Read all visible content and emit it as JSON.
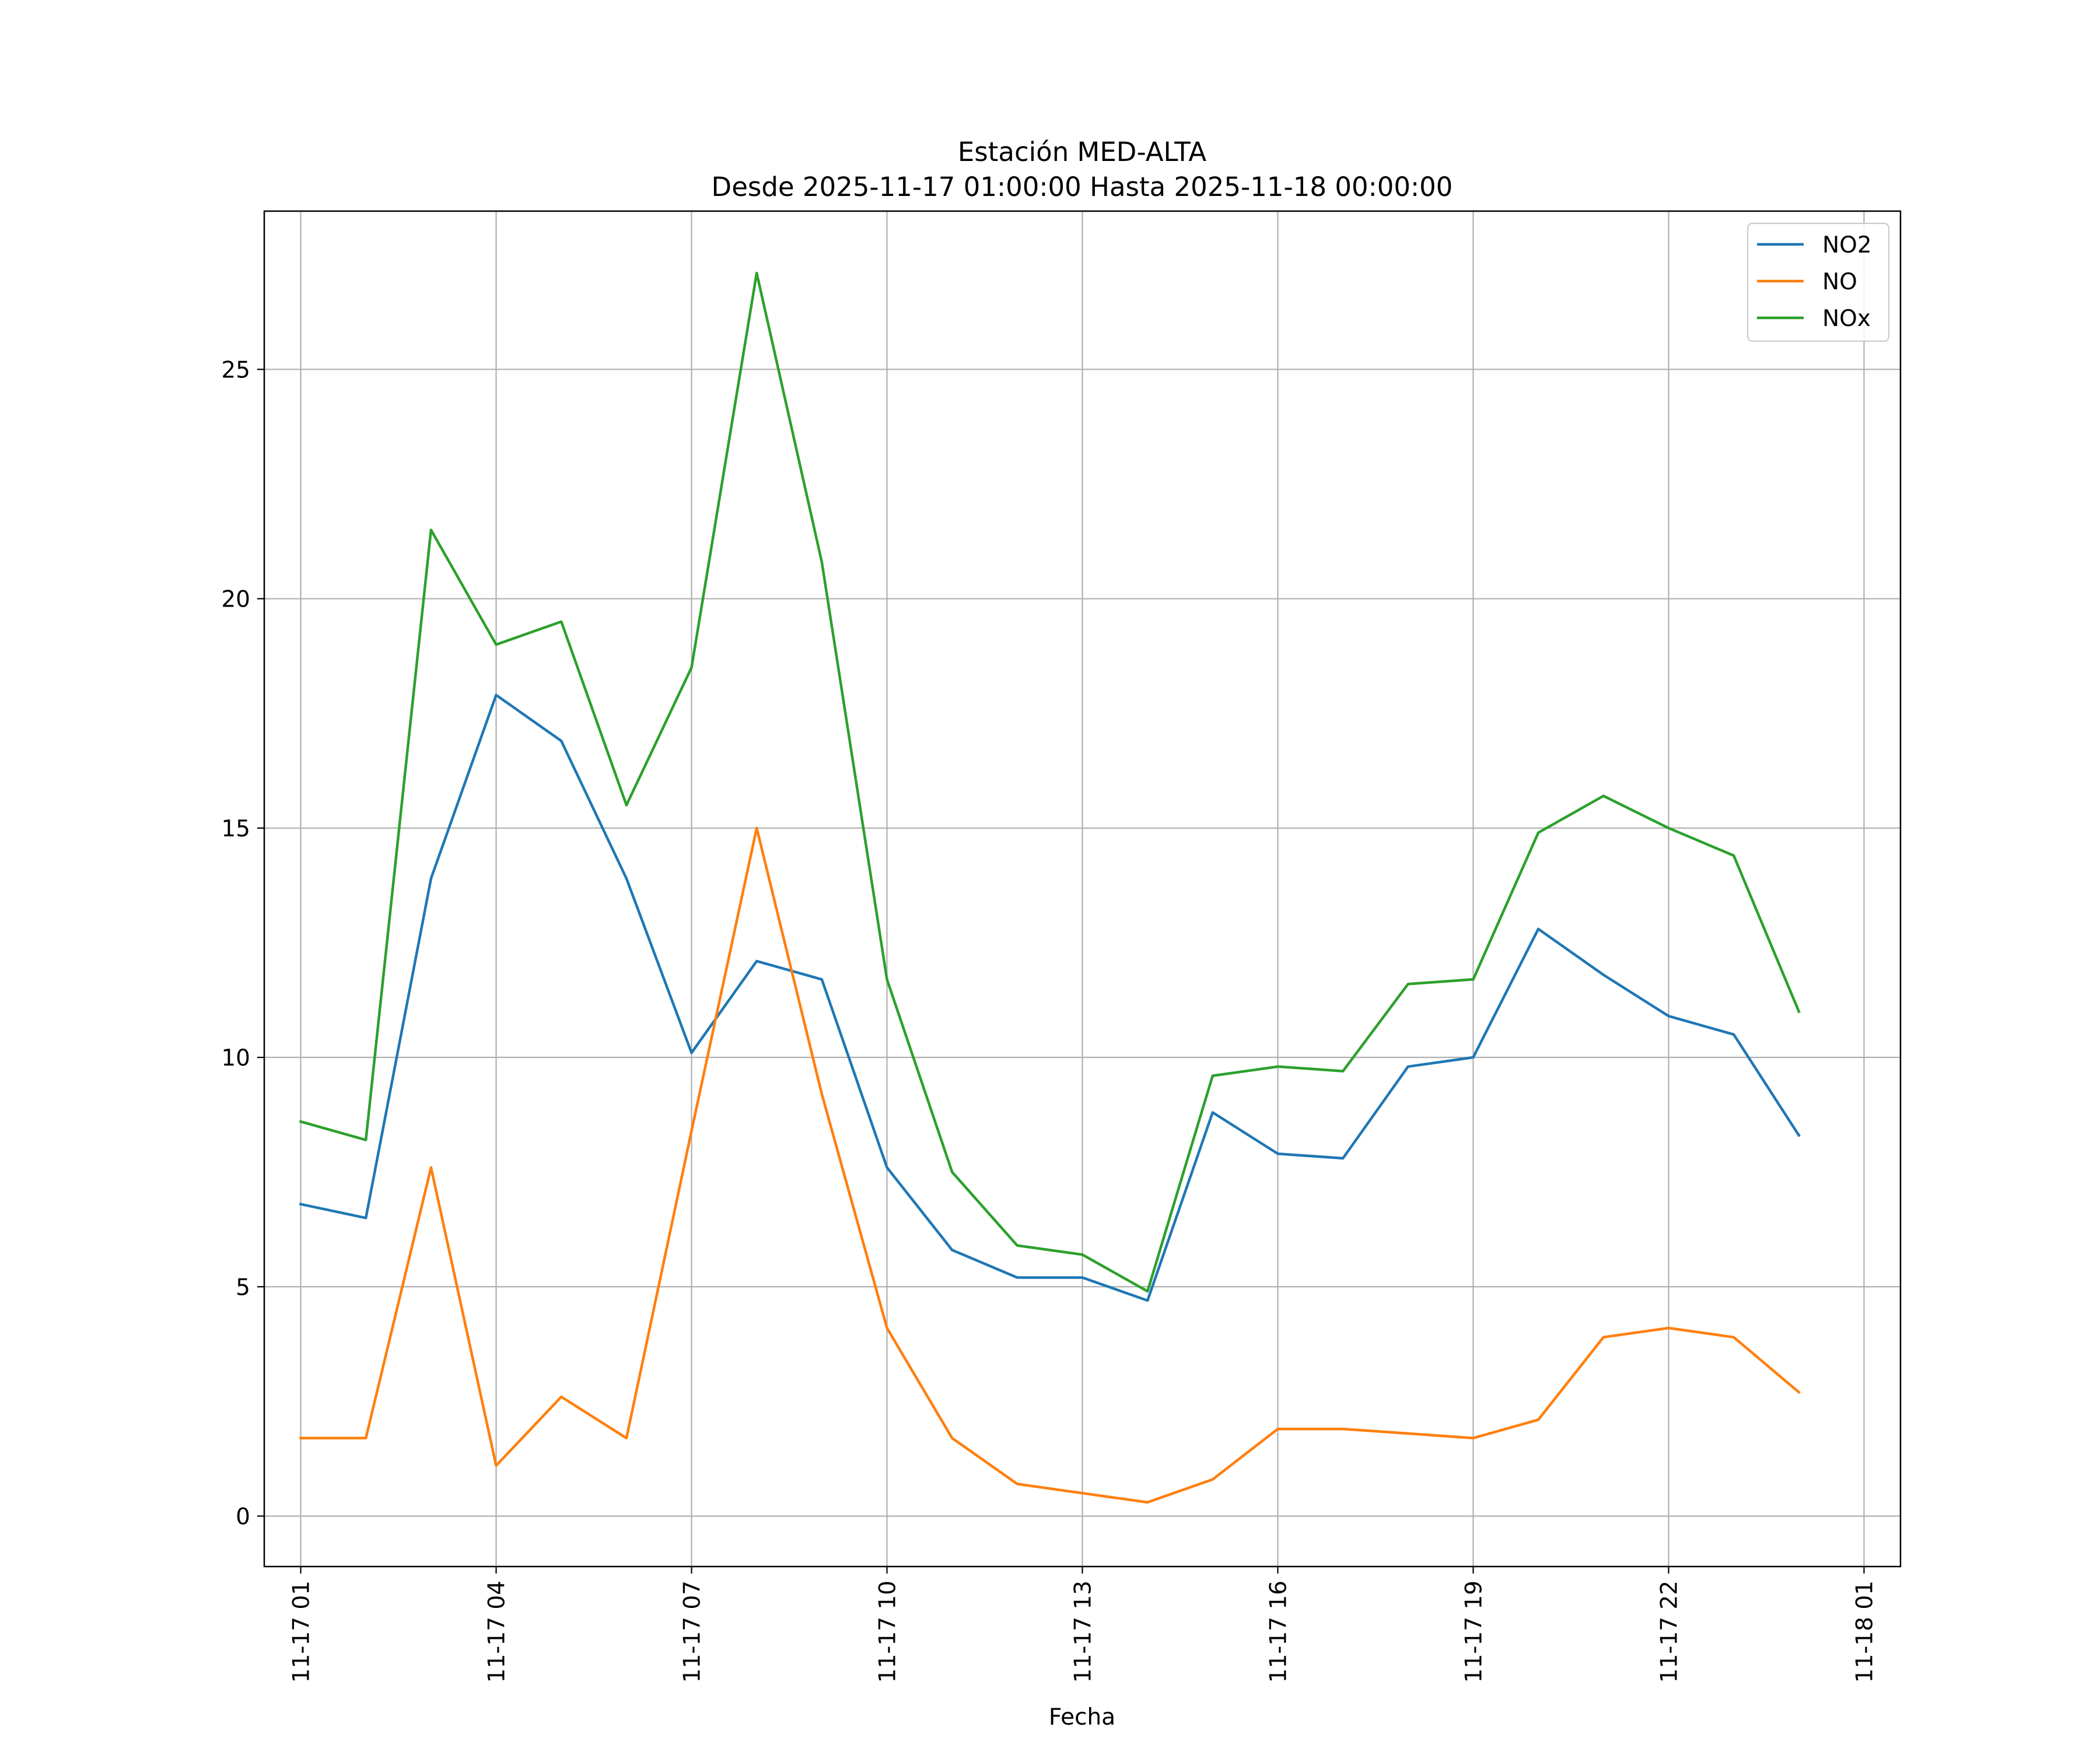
{
  "chart_data": {
    "type": "line",
    "title": "Estación MED-ALTA",
    "subtitle": "Desde 2025-11-17 01:00:00 Hasta 2025-11-18 00:00:00",
    "xlabel": "Fecha",
    "ylabel": "",
    "x": [
      "11-17 01",
      "11-17 02",
      "11-17 03",
      "11-17 04",
      "11-17 05",
      "11-17 06",
      "11-17 07",
      "11-17 08",
      "11-17 09",
      "11-17 10",
      "11-17 11",
      "11-17 12",
      "11-17 13",
      "11-17 14",
      "11-17 15",
      "11-17 16",
      "11-17 17",
      "11-17 18",
      "11-17 19",
      "11-17 20",
      "11-17 21",
      "11-17 22",
      "11-17 23",
      "11-18 00"
    ],
    "xticks": [
      "11-17 01",
      "11-17 04",
      "11-17 07",
      "11-17 10",
      "11-17 13",
      "11-17 16",
      "11-17 19",
      "11-17 22",
      "11-18 01"
    ],
    "xlim_hours": [
      -0.56,
      24.56
    ],
    "ylim": [
      -1.1,
      28.45
    ],
    "yticks": [
      0,
      5,
      10,
      15,
      20,
      25
    ],
    "grid": true,
    "legend_position": "top-right",
    "series": [
      {
        "name": "NO2",
        "color": "#1f77b4",
        "values": [
          6.8,
          6.5,
          13.9,
          17.9,
          16.9,
          13.9,
          10.1,
          12.1,
          11.7,
          7.6,
          5.8,
          5.2,
          5.2,
          4.7,
          8.8,
          7.9,
          7.8,
          9.8,
          10.0,
          12.8,
          11.8,
          10.9,
          10.5,
          8.3
        ]
      },
      {
        "name": "NO",
        "color": "#ff7f0e",
        "values": [
          1.7,
          1.7,
          7.6,
          1.1,
          2.6,
          1.7,
          8.4,
          15.0,
          9.2,
          4.1,
          1.7,
          0.7,
          0.5,
          0.3,
          0.8,
          1.9,
          1.9,
          1.8,
          1.7,
          2.1,
          3.9,
          4.1,
          3.9,
          2.7
        ]
      },
      {
        "name": "NOx",
        "color": "#2ca02c",
        "values": [
          8.6,
          8.2,
          21.5,
          19.0,
          19.5,
          15.5,
          18.5,
          27.1,
          20.8,
          11.7,
          7.5,
          5.9,
          5.7,
          4.9,
          9.6,
          9.8,
          9.7,
          11.6,
          11.7,
          14.9,
          15.7,
          15.0,
          14.4,
          11.0
        ]
      }
    ]
  }
}
